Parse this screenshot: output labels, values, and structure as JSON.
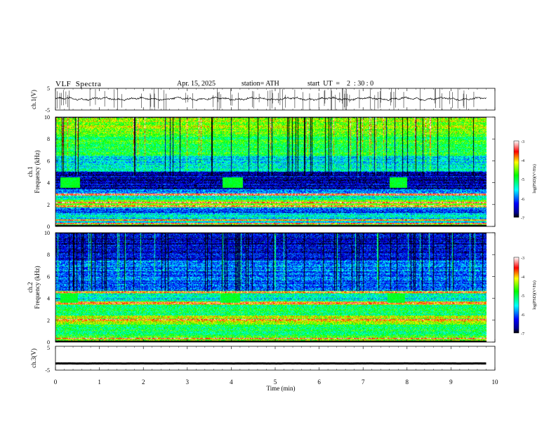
{
  "header": {
    "title": "VLF  Spectra",
    "date": "Apr. 15, 2025",
    "station": "station= ATH",
    "start": "start  UT  =    2  : 30 : 0"
  },
  "chart_data": [
    {
      "id": "ch1_voltage",
      "type": "line",
      "ylabel": "ch.1(V)",
      "ylim": [
        -5,
        5
      ],
      "ytick_labels": [
        "5",
        "-5"
      ],
      "xlim": [
        0,
        10
      ],
      "baseline_v": 0.2,
      "color": "#000000"
    },
    {
      "id": "ch1_spectrogram",
      "type": "heatmap",
      "ylabel_channel": "ch.1",
      "ylabel": "Frequency  (kHz)",
      "ylim": [
        0,
        10
      ],
      "yticks": [
        0,
        2,
        4,
        6,
        8,
        10
      ],
      "xlim": [
        0,
        10
      ],
      "data_end_min": 9.8,
      "colorbar": {
        "label": "log(PSD)(V²/Hz)",
        "range": [
          -7,
          -3
        ],
        "ticks": [
          "-3",
          "-4",
          "-5",
          "-6",
          "-7"
        ]
      },
      "bands": [
        {
          "from": 0,
          "to": 0.3,
          "level": -4.8
        },
        {
          "from": 0.3,
          "to": 1.2,
          "level": -5.6
        },
        {
          "from": 1.2,
          "to": 1.7,
          "level": -6.2
        },
        {
          "from": 1.7,
          "to": 2.4,
          "level": -4.6
        },
        {
          "from": 2.4,
          "to": 3.0,
          "level": -5.4
        },
        {
          "from": 3.0,
          "to": 3.4,
          "level": -5.9
        },
        {
          "from": 3.4,
          "to": 5.0,
          "level": -6.6
        },
        {
          "from": 5.0,
          "to": 6.5,
          "level": -5.5
        },
        {
          "from": 6.5,
          "to": 8.5,
          "level": -4.9
        },
        {
          "from": 8.5,
          "to": 10,
          "level": -4.5
        }
      ],
      "bursts": [
        {
          "t0": 0.1,
          "t1": 0.55
        },
        {
          "t0": 3.8,
          "t1": 4.25
        },
        {
          "t0": 7.6,
          "t1": 8.0
        }
      ],
      "burst_freq": [
        3.5,
        4.5
      ],
      "lines_khz": [
        0.05,
        0.25,
        0.55,
        1.85,
        2.15,
        2.9
      ]
    },
    {
      "id": "ch2_spectrogram",
      "type": "heatmap",
      "ylabel_channel": "ch.2",
      "ylabel": "Frequency  (kHz)",
      "ylim": [
        0,
        10
      ],
      "yticks": [
        0,
        2,
        4,
        6,
        8,
        10
      ],
      "xlim": [
        0,
        10
      ],
      "data_end_min": 9.8,
      "colorbar": {
        "label": "log(PSD)(V²/Hz)",
        "range": [
          -7,
          -3
        ],
        "ticks": [
          "-3",
          "-4",
          "-5",
          "-6",
          "-7"
        ]
      },
      "bands": [
        {
          "from": 0,
          "to": 0.5,
          "level": -4.7
        },
        {
          "from": 0.5,
          "to": 1.6,
          "level": -5.1
        },
        {
          "from": 1.6,
          "to": 2.4,
          "level": -4.4
        },
        {
          "from": 2.4,
          "to": 3.4,
          "level": -5.0
        },
        {
          "from": 3.4,
          "to": 3.7,
          "level": -4.1
        },
        {
          "from": 3.7,
          "to": 4.4,
          "level": -5.5
        },
        {
          "from": 4.4,
          "to": 4.7,
          "level": -4.6
        },
        {
          "from": 4.7,
          "to": 7.5,
          "level": -6.0
        },
        {
          "from": 7.5,
          "to": 10,
          "level": -6.5
        }
      ],
      "bursts": [
        {
          "t0": 0.1,
          "t1": 0.5
        },
        {
          "t0": 3.75,
          "t1": 4.2
        },
        {
          "t0": 7.55,
          "t1": 7.95
        }
      ],
      "burst_freq": [
        3.6,
        4.4
      ],
      "lines_khz": [
        0.05,
        0.3,
        2.05,
        3.55,
        4.55
      ]
    },
    {
      "id": "ch3_voltage",
      "type": "line",
      "ylabel": "ch.3(V)",
      "ylim": [
        -5,
        5
      ],
      "ytick_labels": [
        "5",
        "-5"
      ],
      "xlim": [
        0,
        10
      ],
      "baseline_v": -2.2,
      "color": "#000000"
    }
  ],
  "x_axis": {
    "label": "Time  (min)",
    "ticks": [
      "0",
      "1",
      "2",
      "3",
      "4",
      "5",
      "6",
      "7",
      "8",
      "9",
      "10"
    ]
  }
}
